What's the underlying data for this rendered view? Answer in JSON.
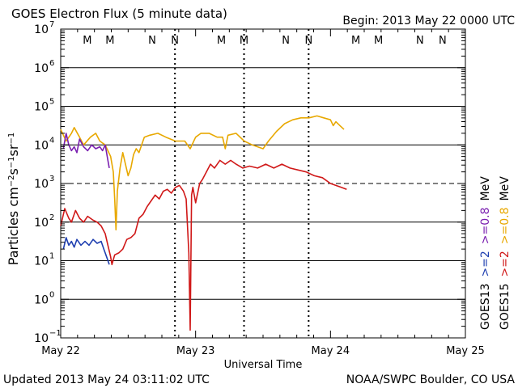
{
  "chart_data": {
    "type": "line",
    "title": "GOES Electron Flux (5 minute data)",
    "begin_label": "Begin: 2013 May 22 0000 UTC",
    "xlabel": "Universal Time",
    "ylabel_parts": [
      "Particles cm",
      "-2",
      "s",
      "-1",
      "sr",
      "-1"
    ],
    "updated_label": "Updated 2013 May 24 03:11:02 UTC",
    "source_label": "NOAA/SWPC Boulder, CO USA",
    "x_ticks": [
      {
        "label": "May 22",
        "day": 0
      },
      {
        "label": "May 23",
        "day": 1
      },
      {
        "label": "May 24",
        "day": 2
      },
      {
        "label": "May 25",
        "day": 3
      }
    ],
    "xlim_days": [
      0,
      3
    ],
    "yscale": "log",
    "ylim_exp": [
      -1,
      7
    ],
    "y_ticks_exp": [
      -1,
      0,
      1,
      2,
      3,
      4,
      5,
      6,
      7
    ],
    "threshold_exp": 3,
    "markers": [
      {
        "label": "M",
        "day": 0.197,
        "color": "#1f3fb0",
        "dashed": false
      },
      {
        "label": "M",
        "day": 0.365,
        "color": "#d01818",
        "dashed": false
      },
      {
        "label": "N",
        "day": 0.678,
        "color": "#1f3fb0",
        "dashed": false
      },
      {
        "label": "N",
        "day": 0.847,
        "color": "#d01818",
        "dashed": true
      },
      {
        "label": "M",
        "day": 1.191,
        "color": "#1f3fb0",
        "dashed": false
      },
      {
        "label": "M",
        "day": 1.359,
        "color": "#d01818",
        "dashed": true
      },
      {
        "label": "N",
        "day": 1.669,
        "color": "#1f3fb0",
        "dashed": false
      },
      {
        "label": "N",
        "day": 1.838,
        "color": "#d01818",
        "dashed": true
      },
      {
        "label": "M",
        "day": 2.188,
        "color": "#1f3fb0",
        "dashed": false
      },
      {
        "label": "M",
        "day": 2.356,
        "color": "#d01818",
        "dashed": false
      },
      {
        "label": "N",
        "day": 2.663,
        "color": "#1f3fb0",
        "dashed": false
      },
      {
        "label": "N",
        "day": 2.831,
        "color": "#d01818",
        "dashed": false
      }
    ],
    "legend": {
      "col1": {
        "sat": "GOES13",
        "ch2": ">=2",
        "ch08": ">=0.8",
        "unit": "MeV",
        "ch2_color": "#1f3fb0",
        "ch08_color": "#7a1fb0"
      },
      "col2": {
        "sat": "GOES15",
        "ch2": ">=2",
        "ch08": ">=0.8",
        "unit": "MeV",
        "ch2_color": "#d01818",
        "ch08_color": "#e8a800"
      }
    },
    "series": [
      {
        "name": "GOES15 >=0.8 MeV",
        "color": "#e8a800",
        "points": [
          [
            0,
            4.4
          ],
          [
            0.04,
            4.1
          ],
          [
            0.08,
            4.3
          ],
          [
            0.1,
            4.45
          ],
          [
            0.14,
            4.2
          ],
          [
            0.17,
            4.0
          ],
          [
            0.22,
            4.2
          ],
          [
            0.26,
            4.3
          ],
          [
            0.29,
            4.1
          ],
          [
            0.33,
            4.0
          ],
          [
            0.37,
            3.7
          ],
          [
            0.39,
            3.3
          ],
          [
            0.4,
            2.6
          ],
          [
            0.41,
            1.8
          ],
          [
            0.42,
            2.8
          ],
          [
            0.44,
            3.4
          ],
          [
            0.46,
            3.8
          ],
          [
            0.48,
            3.5
          ],
          [
            0.5,
            3.2
          ],
          [
            0.52,
            3.4
          ],
          [
            0.54,
            3.75
          ],
          [
            0.56,
            3.9
          ],
          [
            0.58,
            3.8
          ],
          [
            0.62,
            4.2
          ],
          [
            0.66,
            4.25
          ],
          [
            0.72,
            4.3
          ],
          [
            0.78,
            4.2
          ],
          [
            0.85,
            4.1
          ],
          [
            0.92,
            4.1
          ],
          [
            0.96,
            3.9
          ],
          [
            1.0,
            4.2
          ],
          [
            1.04,
            4.3
          ],
          [
            1.1,
            4.3
          ],
          [
            1.16,
            4.2
          ],
          [
            1.2,
            4.2
          ],
          [
            1.22,
            3.9
          ],
          [
            1.24,
            4.25
          ],
          [
            1.3,
            4.3
          ],
          [
            1.36,
            4.1
          ],
          [
            1.42,
            4.0
          ],
          [
            1.46,
            3.95
          ],
          [
            1.5,
            3.9
          ],
          [
            1.54,
            4.1
          ],
          [
            1.6,
            4.35
          ],
          [
            1.66,
            4.55
          ],
          [
            1.72,
            4.65
          ],
          [
            1.78,
            4.7
          ],
          [
            1.84,
            4.7
          ],
          [
            1.9,
            4.75
          ],
          [
            1.95,
            4.7
          ],
          [
            2.0,
            4.65
          ],
          [
            2.02,
            4.5
          ],
          [
            2.04,
            4.6
          ],
          [
            2.07,
            4.5
          ],
          [
            2.1,
            4.4
          ]
        ]
      },
      {
        "name": "GOES15 >=2 MeV",
        "color": "#d01818",
        "points": [
          [
            0,
            1.9
          ],
          [
            0.03,
            2.35
          ],
          [
            0.06,
            2.1
          ],
          [
            0.08,
            2.0
          ],
          [
            0.11,
            2.3
          ],
          [
            0.14,
            2.1
          ],
          [
            0.17,
            2.0
          ],
          [
            0.2,
            2.15
          ],
          [
            0.24,
            2.05
          ],
          [
            0.27,
            2.0
          ],
          [
            0.3,
            1.9
          ],
          [
            0.33,
            1.7
          ],
          [
            0.35,
            1.4
          ],
          [
            0.37,
            1.1
          ],
          [
            0.38,
            0.9
          ],
          [
            0.4,
            1.15
          ],
          [
            0.43,
            1.2
          ],
          [
            0.46,
            1.3
          ],
          [
            0.49,
            1.55
          ],
          [
            0.52,
            1.6
          ],
          [
            0.55,
            1.7
          ],
          [
            0.58,
            2.1
          ],
          [
            0.61,
            2.2
          ],
          [
            0.64,
            2.4
          ],
          [
            0.67,
            2.55
          ],
          [
            0.7,
            2.7
          ],
          [
            0.73,
            2.6
          ],
          [
            0.76,
            2.8
          ],
          [
            0.79,
            2.85
          ],
          [
            0.82,
            2.75
          ],
          [
            0.85,
            2.9
          ],
          [
            0.88,
            2.95
          ],
          [
            0.91,
            2.8
          ],
          [
            0.93,
            2.6
          ],
          [
            0.95,
            1.2
          ],
          [
            0.96,
            -0.8
          ],
          [
            0.97,
            2.7
          ],
          [
            0.98,
            2.9
          ],
          [
            1.0,
            2.5
          ],
          [
            1.03,
            3.0
          ],
          [
            1.05,
            3.1
          ],
          [
            1.08,
            3.3
          ],
          [
            1.11,
            3.5
          ],
          [
            1.14,
            3.4
          ],
          [
            1.18,
            3.6
          ],
          [
            1.22,
            3.5
          ],
          [
            1.26,
            3.6
          ],
          [
            1.3,
            3.5
          ],
          [
            1.35,
            3.4
          ],
          [
            1.4,
            3.45
          ],
          [
            1.46,
            3.4
          ],
          [
            1.52,
            3.5
          ],
          [
            1.58,
            3.4
          ],
          [
            1.64,
            3.5
          ],
          [
            1.7,
            3.4
          ],
          [
            1.76,
            3.35
          ],
          [
            1.82,
            3.3
          ],
          [
            1.88,
            3.2
          ],
          [
            1.94,
            3.15
          ],
          [
            2.0,
            3.0
          ],
          [
            2.04,
            2.95
          ],
          [
            2.08,
            2.9
          ],
          [
            2.12,
            2.85
          ]
        ]
      },
      {
        "name": "GOES13 >=0.8 MeV",
        "color": "#7a1fb0",
        "points": [
          [
            0.02,
            3.9
          ],
          [
            0.04,
            4.3
          ],
          [
            0.06,
            4.0
          ],
          [
            0.08,
            3.85
          ],
          [
            0.1,
            3.95
          ],
          [
            0.12,
            3.8
          ],
          [
            0.14,
            4.15
          ],
          [
            0.17,
            3.95
          ],
          [
            0.2,
            3.85
          ],
          [
            0.23,
            4.0
          ],
          [
            0.26,
            3.9
          ],
          [
            0.29,
            3.95
          ],
          [
            0.31,
            3.85
          ],
          [
            0.33,
            4.0
          ],
          [
            0.35,
            3.6
          ],
          [
            0.36,
            3.4
          ]
        ]
      },
      {
        "name": "GOES13 >=2 MeV",
        "color": "#1f3fb0",
        "points": [
          [
            0.02,
            1.3
          ],
          [
            0.04,
            1.6
          ],
          [
            0.06,
            1.4
          ],
          [
            0.08,
            1.5
          ],
          [
            0.1,
            1.35
          ],
          [
            0.12,
            1.55
          ],
          [
            0.15,
            1.4
          ],
          [
            0.18,
            1.5
          ],
          [
            0.21,
            1.4
          ],
          [
            0.24,
            1.55
          ],
          [
            0.27,
            1.45
          ],
          [
            0.3,
            1.5
          ],
          [
            0.32,
            1.3
          ],
          [
            0.34,
            1.1
          ],
          [
            0.36,
            0.9
          ]
        ]
      }
    ]
  }
}
